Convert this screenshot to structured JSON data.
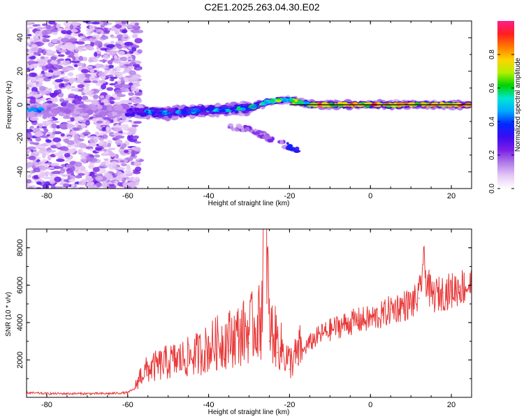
{
  "figure_title": "C2E1.2025.263.04.30.E02",
  "chart_data": [
    {
      "type": "heatmap",
      "title": "C2E1.2025.263.04.30.E02",
      "xlabel": "Height of straight line (km)",
      "ylabel": "Frequency (Hz)",
      "xlim": [
        -85,
        25
      ],
      "ylim": [
        -50,
        50
      ],
      "xticks": [
        -80,
        -60,
        -40,
        -20,
        0,
        20
      ],
      "yticks": [
        -40,
        -20,
        0,
        20,
        40
      ],
      "colorbar": {
        "label": "Normalized spectral amplitude",
        "range": [
          0,
          1
        ],
        "ticks": [
          0.0,
          0.2,
          0.4,
          0.6,
          0.8
        ],
        "colormap": [
          "#ffffff",
          "#e6c8f5",
          "#b07be8",
          "#7a1ee8",
          "#3d0cf0",
          "#0028ff",
          "#00aaff",
          "#00e6d2",
          "#00d200",
          "#b4f000",
          "#ffd200",
          "#ff7a00",
          "#ff1e1e",
          "#ff1e8c"
        ]
      },
      "features": [
        {
          "name": "noise band",
          "x_range": [
            -85,
            -57
          ],
          "frequency_range_hz": [
            -50,
            50
          ],
          "amplitude": 0.1
        },
        {
          "name": "main signal",
          "x_range": [
            -85,
            25
          ],
          "frequency_path": [
            [
              -85,
              -3
            ],
            [
              -60,
              -4
            ],
            [
              -50,
              -5
            ],
            [
              -40,
              -3
            ],
            [
              -35,
              -3
            ],
            [
              -30,
              -2
            ],
            [
              -25,
              2
            ],
            [
              -20,
              3
            ],
            [
              -15,
              0
            ],
            [
              -10,
              0
            ],
            [
              0,
              0
            ],
            [
              25,
              0
            ]
          ],
          "peak_amplitude": 0.95
        },
        {
          "name": "secondary branch",
          "frequency_path": [
            [
              -35,
              -13
            ],
            [
              -30,
              -14
            ],
            [
              -25,
              -20
            ],
            [
              -20,
              -25
            ],
            [
              -18,
              -27
            ]
          ],
          "amplitude": 0.3
        }
      ]
    },
    {
      "type": "line",
      "xlabel": "Height of straight line (km)",
      "ylabel": "SNR (10 * v/v)",
      "xlim": [
        -85,
        25
      ],
      "ylim": [
        0,
        9000
      ],
      "xticks": [
        -80,
        -60,
        -40,
        -20,
        0,
        20
      ],
      "yticks": [
        2000,
        4000,
        6000,
        8000
      ],
      "color": "#e83a3a",
      "series": [
        {
          "name": "SNR",
          "x": [
            -85,
            -80,
            -75,
            -70,
            -65,
            -60,
            -58,
            -57,
            -55,
            -50,
            -45,
            -42,
            -40,
            -38,
            -35,
            -32,
            -30,
            -28,
            -27,
            -26,
            -25,
            -23,
            -20,
            -18,
            -16,
            -14,
            -12,
            -10,
            -8,
            -5,
            -3,
            0,
            3,
            5,
            8,
            10,
            12,
            13,
            15,
            18,
            20,
            22,
            25
          ],
          "values": [
            250,
            200,
            200,
            200,
            200,
            250,
            500,
            900,
            1200,
            1500,
            1700,
            1900,
            2100,
            2300,
            2500,
            2700,
            2900,
            3100,
            3300,
            9100,
            3000,
            2400,
            1500,
            1800,
            2700,
            3100,
            3400,
            3600,
            3800,
            4000,
            4100,
            4200,
            4400,
            4700,
            4900,
            5000,
            5300,
            7100,
            5400,
            5600,
            5700,
            5900,
            6000
          ]
        }
      ]
    }
  ]
}
